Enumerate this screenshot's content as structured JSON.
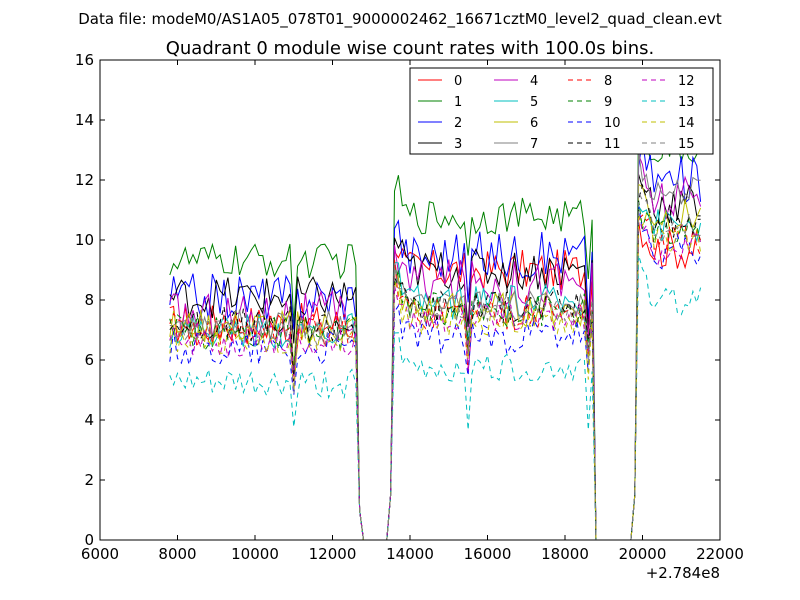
{
  "chart_data": {
    "type": "line",
    "suptitle": "Data file: modeM0/AS1A05_078T01_9000002462_16671cztM0_level2_quad_clean.evt",
    "title": "Quadrant 0 module wise count rates with 100.0s bins.",
    "xlabel": "",
    "ylabel": "",
    "x_offset_label": "+2.784e8",
    "xlim": [
      6000,
      22000
    ],
    "ylim": [
      0,
      16
    ],
    "xticks": [
      6000,
      8000,
      10000,
      12000,
      14000,
      16000,
      18000,
      20000,
      22000
    ],
    "yticks": [
      0,
      2,
      4,
      6,
      8,
      10,
      12,
      14,
      16
    ],
    "grid": false,
    "legend_location": "top-right",
    "legend_columns": 4,
    "x_segments": [
      {
        "start": 7800,
        "end": 12600,
        "step": 100
      },
      {
        "start": 13600,
        "end": 18700,
        "step": 100
      },
      {
        "start": 19900,
        "end": 21500,
        "step": 100
      }
    ],
    "gap_points": [
      [
        12700,
        1.0
      ],
      [
        12800,
        0
      ],
      [
        12900,
        0
      ],
      [
        13000,
        0
      ],
      [
        13100,
        0
      ],
      [
        13200,
        0
      ],
      [
        13300,
        0
      ],
      [
        13400,
        0
      ],
      [
        13500,
        1.5
      ],
      [
        18800,
        0
      ],
      [
        18900,
        0
      ],
      [
        19000,
        0
      ],
      [
        19100,
        0
      ],
      [
        19200,
        0
      ],
      [
        19300,
        0
      ],
      [
        19400,
        0
      ],
      [
        19500,
        0
      ],
      [
        19600,
        0
      ],
      [
        19700,
        0
      ],
      [
        19800,
        1.5
      ]
    ],
    "series": [
      {
        "name": "0",
        "color": "#ff0000",
        "dashed": false,
        "base": [
          7.2,
          9.0,
          9.7
        ],
        "amp": 0.7
      },
      {
        "name": "1",
        "color": "#008000",
        "dashed": false,
        "base": [
          9.3,
          10.8,
          13.0
        ],
        "amp": 0.6
      },
      {
        "name": "2",
        "color": "#0000ff",
        "dashed": false,
        "base": [
          8.1,
          9.5,
          12.0
        ],
        "amp": 0.8
      },
      {
        "name": "3",
        "color": "#000000",
        "dashed": false,
        "base": [
          8.1,
          9.0,
          11.2
        ],
        "amp": 0.7
      },
      {
        "name": "4",
        "color": "#bf00bf",
        "dashed": false,
        "base": [
          7.5,
          8.6,
          11.3
        ],
        "amp": 0.8
      },
      {
        "name": "5",
        "color": "#00bfbf",
        "dashed": false,
        "base": [
          7.0,
          7.9,
          10.5
        ],
        "amp": 0.6
      },
      {
        "name": "6",
        "color": "#bfbf00",
        "dashed": false,
        "base": [
          7.1,
          7.7,
          10.8
        ],
        "amp": 0.6
      },
      {
        "name": "7",
        "color": "#808080",
        "dashed": false,
        "base": [
          7.2,
          7.8,
          11.6
        ],
        "amp": 0.5
      },
      {
        "name": "8",
        "color": "#ff0000",
        "dashed": true,
        "base": [
          7.0,
          7.6,
          10.0
        ],
        "amp": 0.6
      },
      {
        "name": "9",
        "color": "#008000",
        "dashed": true,
        "base": [
          6.9,
          7.7,
          10.2
        ],
        "amp": 0.6
      },
      {
        "name": "10",
        "color": "#0000ff",
        "dashed": true,
        "base": [
          6.4,
          6.8,
          9.6
        ],
        "amp": 0.6
      },
      {
        "name": "11",
        "color": "#000000",
        "dashed": true,
        "base": [
          7.2,
          7.8,
          10.6
        ],
        "amp": 0.6
      },
      {
        "name": "12",
        "color": "#bf00bf",
        "dashed": true,
        "base": [
          6.6,
          7.4,
          9.7
        ],
        "amp": 0.5
      },
      {
        "name": "13",
        "color": "#00bfbf",
        "dashed": true,
        "base": [
          5.2,
          5.7,
          8.0
        ],
        "amp": 0.5
      },
      {
        "name": "14",
        "color": "#bfbf00",
        "dashed": true,
        "base": [
          6.7,
          7.3,
          10.0
        ],
        "amp": 0.5
      },
      {
        "name": "15",
        "color": "#808080",
        "dashed": true,
        "base": [
          6.9,
          7.7,
          10.4
        ],
        "amp": 0.5
      }
    ]
  }
}
